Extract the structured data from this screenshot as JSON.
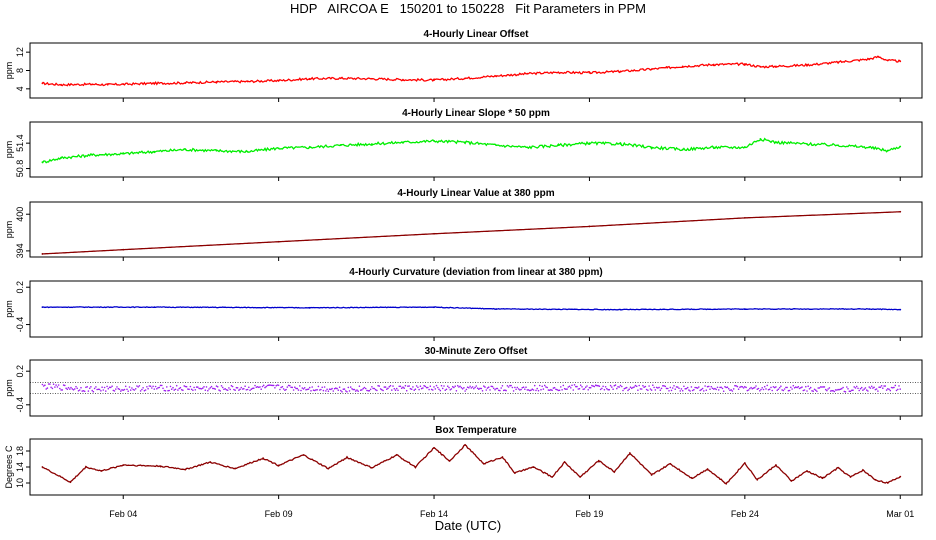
{
  "title": "HDP   AIRCOA E   150201 to 150228   Fit Parameters in PPM",
  "xlabel": "Date (UTC)",
  "colors": {
    "offset": "#ff0000",
    "slope": "#00ee00",
    "value": "#8b0000",
    "curvature": "#0000cc",
    "zero": "#a020f0",
    "temperature": "#8b0000"
  },
  "chart_data": [
    {
      "type": "line",
      "title": "4-Hourly Linear Offset",
      "ylabel": "ppm",
      "x_range": [
        "Feb 01",
        "Mar 01"
      ],
      "ylim": [
        2,
        14
      ],
      "yticks": [
        "4",
        "8",
        "12"
      ],
      "xticks": [
        "Feb 04",
        "Feb 09",
        "Feb 14",
        "Feb 19",
        "Feb 24",
        "Mar 01"
      ],
      "x": [
        1.4,
        2,
        3,
        3.5,
        4,
        5,
        6,
        7,
        8,
        9,
        10,
        11,
        12,
        13,
        14,
        15,
        16,
        17,
        18,
        19,
        20,
        21,
        21.5,
        22,
        23,
        24,
        24.5,
        25,
        26,
        27,
        28,
        28.3,
        28.6,
        29
      ],
      "series": [
        {
          "values": [
            5.2,
            4.9,
            5.0,
            4.9,
            5.0,
            5.2,
            5.3,
            5.5,
            5.6,
            5.8,
            6.2,
            6.3,
            6.2,
            6.0,
            5.9,
            6.3,
            6.8,
            7.3,
            7.6,
            7.5,
            7.8,
            8.3,
            8.6,
            8.9,
            9.3,
            9.4,
            8.8,
            8.9,
            9.2,
            9.8,
            10.5,
            11.0,
            10.2,
            10.0
          ]
        }
      ]
    },
    {
      "type": "line",
      "title": "4-Hourly Linear Slope * 50 ppm",
      "ylabel": "ppm",
      "x_range": [
        "Feb 01",
        "Mar 01"
      ],
      "ylim": [
        50.6,
        51.9
      ],
      "yticks": [
        "50.8",
        "51.4"
      ],
      "xticks": [
        "Feb 04",
        "Feb 09",
        "Feb 14",
        "Feb 19",
        "Feb 24",
        "Mar 01"
      ],
      "x": [
        1.4,
        2,
        3,
        4,
        5,
        6,
        7,
        8,
        9,
        10,
        11,
        12,
        13,
        14,
        15,
        16,
        17,
        18,
        19,
        20,
        21,
        22,
        23,
        24,
        24.5,
        25,
        26,
        27,
        28,
        28.6,
        29
      ],
      "series": [
        {
          "values": [
            50.95,
            51.05,
            51.12,
            51.15,
            51.2,
            51.25,
            51.22,
            51.2,
            51.28,
            51.3,
            51.35,
            51.38,
            51.42,
            51.45,
            51.42,
            51.35,
            51.3,
            51.35,
            51.4,
            51.38,
            51.3,
            51.25,
            51.3,
            51.3,
            51.5,
            51.42,
            51.38,
            51.35,
            51.3,
            51.22,
            51.32
          ]
        }
      ]
    },
    {
      "type": "line",
      "title": "4-Hourly Linear Value at 380 ppm",
      "ylabel": "ppm",
      "x_range": [
        "Feb 01",
        "Mar 01"
      ],
      "ylim": [
        393,
        402
      ],
      "yticks": [
        "394",
        "400"
      ],
      "xticks": [
        "Feb 04",
        "Feb 09",
        "Feb 14",
        "Feb 19",
        "Feb 24",
        "Mar 01"
      ],
      "x": [
        1.4,
        4,
        9,
        14,
        19,
        24,
        29
      ],
      "series": [
        {
          "values": [
            393.5,
            394.2,
            395.5,
            396.8,
            398.0,
            399.4,
            400.4
          ]
        }
      ]
    },
    {
      "type": "line",
      "title": "4-Hourly Curvature (deviation from linear at 380 ppm)",
      "ylabel": "ppm",
      "x_range": [
        "Feb 01",
        "Mar 01"
      ],
      "ylim": [
        -0.6,
        0.3
      ],
      "yticks": [
        "-0.4",
        "0.2"
      ],
      "xticks": [
        "Feb 04",
        "Feb 09",
        "Feb 14",
        "Feb 19",
        "Feb 24",
        "Mar 01"
      ],
      "x": [
        1.4,
        5,
        10,
        14,
        16,
        20,
        24,
        28,
        29
      ],
      "series": [
        {
          "values": [
            -0.12,
            -0.12,
            -0.13,
            -0.12,
            -0.15,
            -0.16,
            -0.15,
            -0.15,
            -0.16
          ]
        }
      ]
    },
    {
      "type": "scatter",
      "title": "30-Minute Zero Offset",
      "ylabel": "ppm",
      "x_range": [
        "Feb 01",
        "Mar 01"
      ],
      "ylim": [
        -0.6,
        0.4
      ],
      "yticks": [
        "-0.4",
        "0.2"
      ],
      "xticks": [
        "Feb 04",
        "Feb 09",
        "Feb 14",
        "Feb 19",
        "Feb 24",
        "Mar 01"
      ],
      "reference_lines": [
        0.0,
        -0.2
      ],
      "x": [
        1.4,
        3,
        5,
        7,
        9,
        11,
        13,
        15,
        17,
        19,
        21,
        23,
        25,
        27,
        29
      ],
      "series": [
        {
          "values": [
            -0.07,
            -0.12,
            -0.1,
            -0.11,
            -0.09,
            -0.12,
            -0.1,
            -0.11,
            -0.1,
            -0.09,
            -0.1,
            -0.11,
            -0.1,
            -0.12,
            -0.1
          ]
        }
      ]
    },
    {
      "type": "line",
      "title": "Box Temperature",
      "ylabel": "Degrees C",
      "x_range": [
        "Feb 01",
        "Mar 01"
      ],
      "ylim": [
        7,
        21
      ],
      "yticks": [
        "10",
        "14",
        "18"
      ],
      "xticks": [
        "Feb 04",
        "Feb 09",
        "Feb 14",
        "Feb 19",
        "Feb 24",
        "Mar 01"
      ],
      "x": [
        1.4,
        2.3,
        2.8,
        3.3,
        4.0,
        5.2,
        6.0,
        6.8,
        7.6,
        8.5,
        9.0,
        9.8,
        10.6,
        11.2,
        12.0,
        12.8,
        13.4,
        14.0,
        14.5,
        15.0,
        15.6,
        16.2,
        16.6,
        17.2,
        17.8,
        18.2,
        18.7,
        19.3,
        19.8,
        20.3,
        21.0,
        21.6,
        22.3,
        22.8,
        23.4,
        24.0,
        24.4,
        25.0,
        25.5,
        26.0,
        26.5,
        27.0,
        27.4,
        27.8,
        28.2,
        28.6,
        29.0
      ],
      "series": [
        {
          "values": [
            14.0,
            10.2,
            14.0,
            13.0,
            14.5,
            14.2,
            13.4,
            15.2,
            13.6,
            16.2,
            14.4,
            17.0,
            13.6,
            16.4,
            13.8,
            17.0,
            14.0,
            18.8,
            15.5,
            19.5,
            14.8,
            16.5,
            12.5,
            14.0,
            11.5,
            15.2,
            11.5,
            15.6,
            12.8,
            17.5,
            12.0,
            14.8,
            11.2,
            13.5,
            9.8,
            15.0,
            10.8,
            14.5,
            10.5,
            13.0,
            11.2,
            13.8,
            11.5,
            13.2,
            10.8,
            10.0,
            11.6
          ]
        }
      ]
    }
  ]
}
